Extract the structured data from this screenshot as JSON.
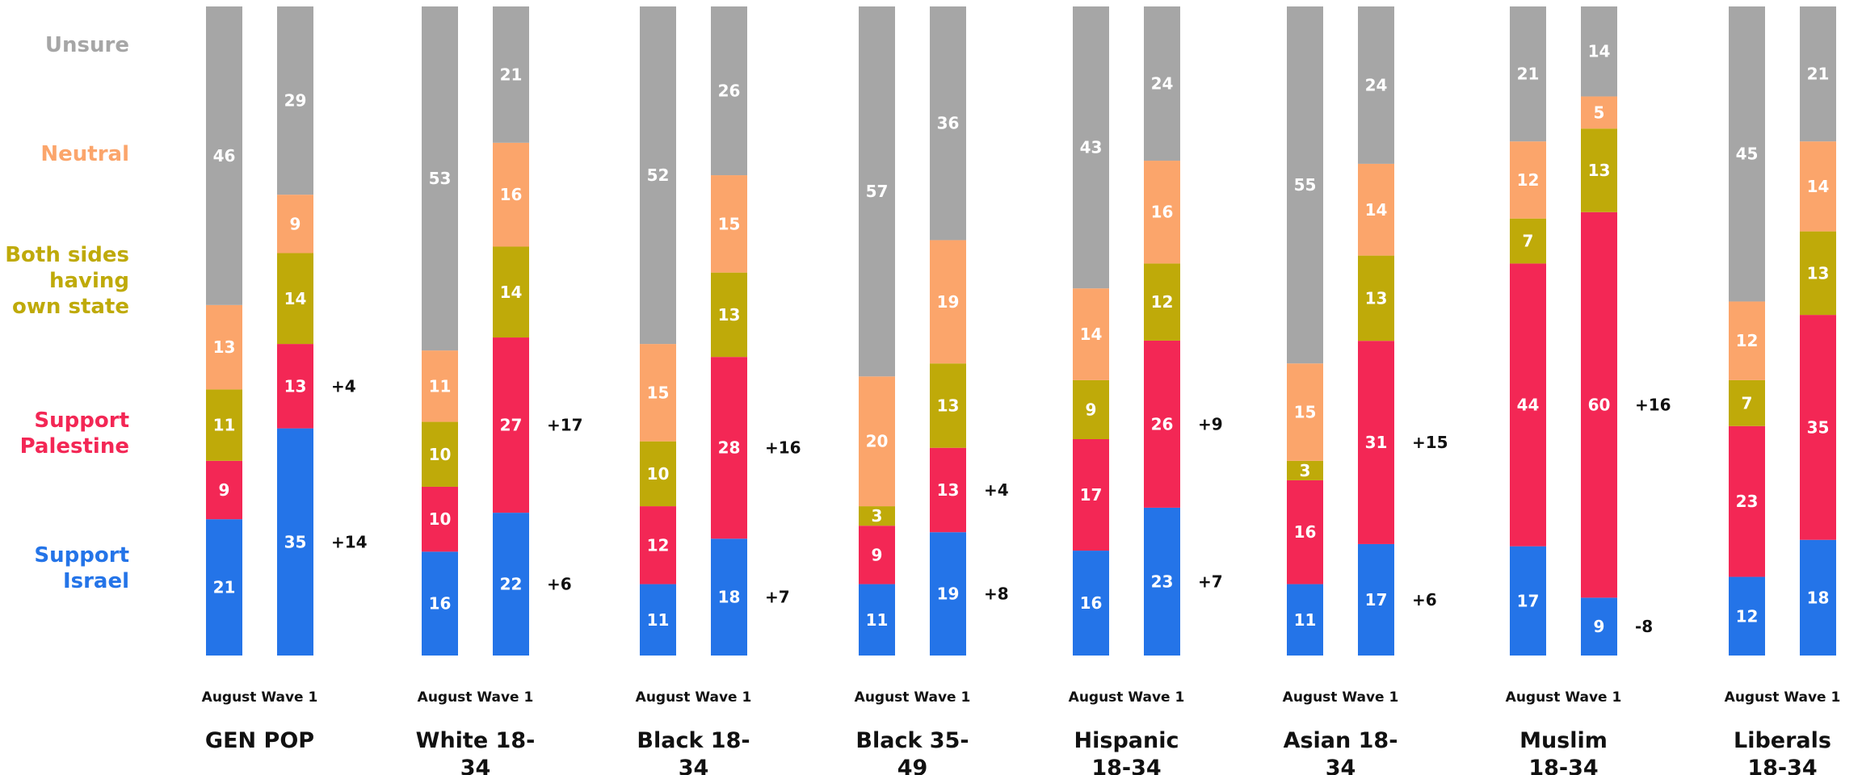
{
  "chart_data": {
    "type": "bar",
    "stacked": true,
    "legend": [
      {
        "name": "Unsure",
        "label_lines": [
          "Unsure"
        ],
        "color": "#a6a6a6"
      },
      {
        "name": "Neutral",
        "label_lines": [
          "Neutral"
        ],
        "color": "#fba56b"
      },
      {
        "name": "Both sides having own state",
        "label_lines": [
          "Both sides",
          "having",
          "own state"
        ],
        "color": "#bfaa09"
      },
      {
        "name": "Support Palestine",
        "label_lines": [
          "Support",
          "Palestine"
        ],
        "color": "#f32755"
      },
      {
        "name": "Support Israel",
        "label_lines": [
          "Support",
          "Israel"
        ],
        "color": "#2474e8"
      }
    ],
    "stack_order": [
      "Support Israel",
      "Support Palestine",
      "Both sides having own state",
      "Neutral",
      "Unsure"
    ],
    "groups": [
      {
        "name_lines": [
          "GEN POP"
        ],
        "wave": "August Wave 1",
        "bars": [
          {
            "values": [
              21,
              9,
              11,
              13,
              46
            ]
          },
          {
            "values": [
              35,
              13,
              14,
              9,
              29
            ],
            "diffs": {
              "israel": "+14",
              "palestine": "+4"
            }
          }
        ]
      },
      {
        "name_lines": [
          "White 18-",
          "34"
        ],
        "wave": "August Wave 1",
        "bars": [
          {
            "values": [
              16,
              10,
              10,
              11,
              53
            ]
          },
          {
            "values": [
              22,
              27,
              14,
              16,
              21
            ],
            "diffs": {
              "israel": "+6",
              "palestine": "+17"
            }
          }
        ]
      },
      {
        "name_lines": [
          "Black 18-",
          "34"
        ],
        "wave": "August Wave 1",
        "bars": [
          {
            "values": [
              11,
              12,
              10,
              15,
              52
            ]
          },
          {
            "values": [
              18,
              28,
              13,
              15,
              26
            ],
            "diffs": {
              "israel": "+7",
              "palestine": "+16"
            }
          }
        ]
      },
      {
        "name_lines": [
          "Black 35-",
          "49"
        ],
        "wave": "August Wave 1",
        "bars": [
          {
            "values": [
              11,
              9,
              3,
              20,
              57
            ]
          },
          {
            "values": [
              19,
              13,
              13,
              19,
              36
            ],
            "diffs": {
              "israel": "+8",
              "palestine": "+4"
            }
          }
        ]
      },
      {
        "name_lines": [
          "Hispanic",
          "18-34"
        ],
        "wave": "August Wave 1",
        "bars": [
          {
            "values": [
              16,
              17,
              9,
              14,
              43
            ]
          },
          {
            "values": [
              23,
              26,
              12,
              16,
              24
            ],
            "diffs": {
              "israel": "+7",
              "palestine": "+9"
            }
          }
        ]
      },
      {
        "name_lines": [
          "Asian 18-",
          "34"
        ],
        "wave": "August Wave 1",
        "bars": [
          {
            "values": [
              11,
              16,
              3,
              15,
              55
            ]
          },
          {
            "values": [
              17,
              31,
              13,
              14,
              24
            ],
            "diffs": {
              "israel": "+6",
              "palestine": "+15"
            }
          }
        ]
      },
      {
        "name_lines": [
          "Muslim",
          "18-34"
        ],
        "wave": "August Wave 1",
        "bars": [
          {
            "values": [
              17,
              44,
              7,
              12,
              21
            ]
          },
          {
            "values": [
              9,
              60,
              13,
              5,
              14
            ],
            "diffs": {
              "israel": "-8",
              "palestine": "+16"
            }
          }
        ]
      },
      {
        "name_lines": [
          "Liberals",
          "18-34"
        ],
        "wave": "August Wave 1",
        "bars": [
          {
            "values": [
              12,
              23,
              7,
              12,
              45
            ]
          },
          {
            "values": [
              18,
              35,
              13,
              14,
              21
            ]
          }
        ]
      }
    ],
    "grid": false
  }
}
